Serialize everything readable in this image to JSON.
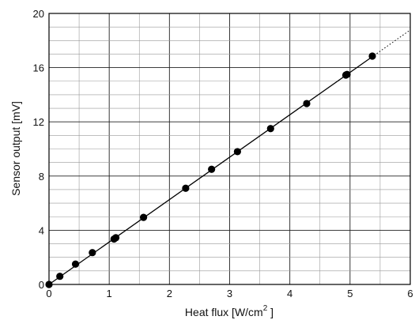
{
  "chart_data": {
    "type": "scatter",
    "title": "",
    "xlabel": "Heat flux [W/cm",
    "xlabel_sup": "2",
    "xlabel_tail": " ]",
    "ylabel": "Sensor output [mV]",
    "xlim": [
      0,
      6
    ],
    "ylim": [
      0,
      20
    ],
    "xticks": [
      0,
      1,
      2,
      3,
      4,
      5,
      6
    ],
    "yticks": [
      0,
      4,
      8,
      12,
      16,
      20
    ],
    "x_minor_step": 0.5,
    "y_minor_step": 1,
    "grid": true,
    "series": [
      {
        "x": [
          0.0,
          0.18,
          0.44,
          0.72,
          1.08,
          1.11,
          1.57,
          2.27,
          2.7,
          3.13,
          3.68,
          4.28,
          4.93,
          4.95,
          5.37
        ],
        "y": [
          0.0,
          0.6,
          1.5,
          2.35,
          3.35,
          3.45,
          4.95,
          7.1,
          8.5,
          9.8,
          11.5,
          13.35,
          15.45,
          15.5,
          16.85
        ],
        "marker": "filled-circle",
        "color": "#000000"
      }
    ],
    "fit_line": {
      "slope": 3.13,
      "intercept": 0,
      "x_solid_end": 5.4,
      "style_after": "dotted",
      "color": "#000000"
    }
  }
}
